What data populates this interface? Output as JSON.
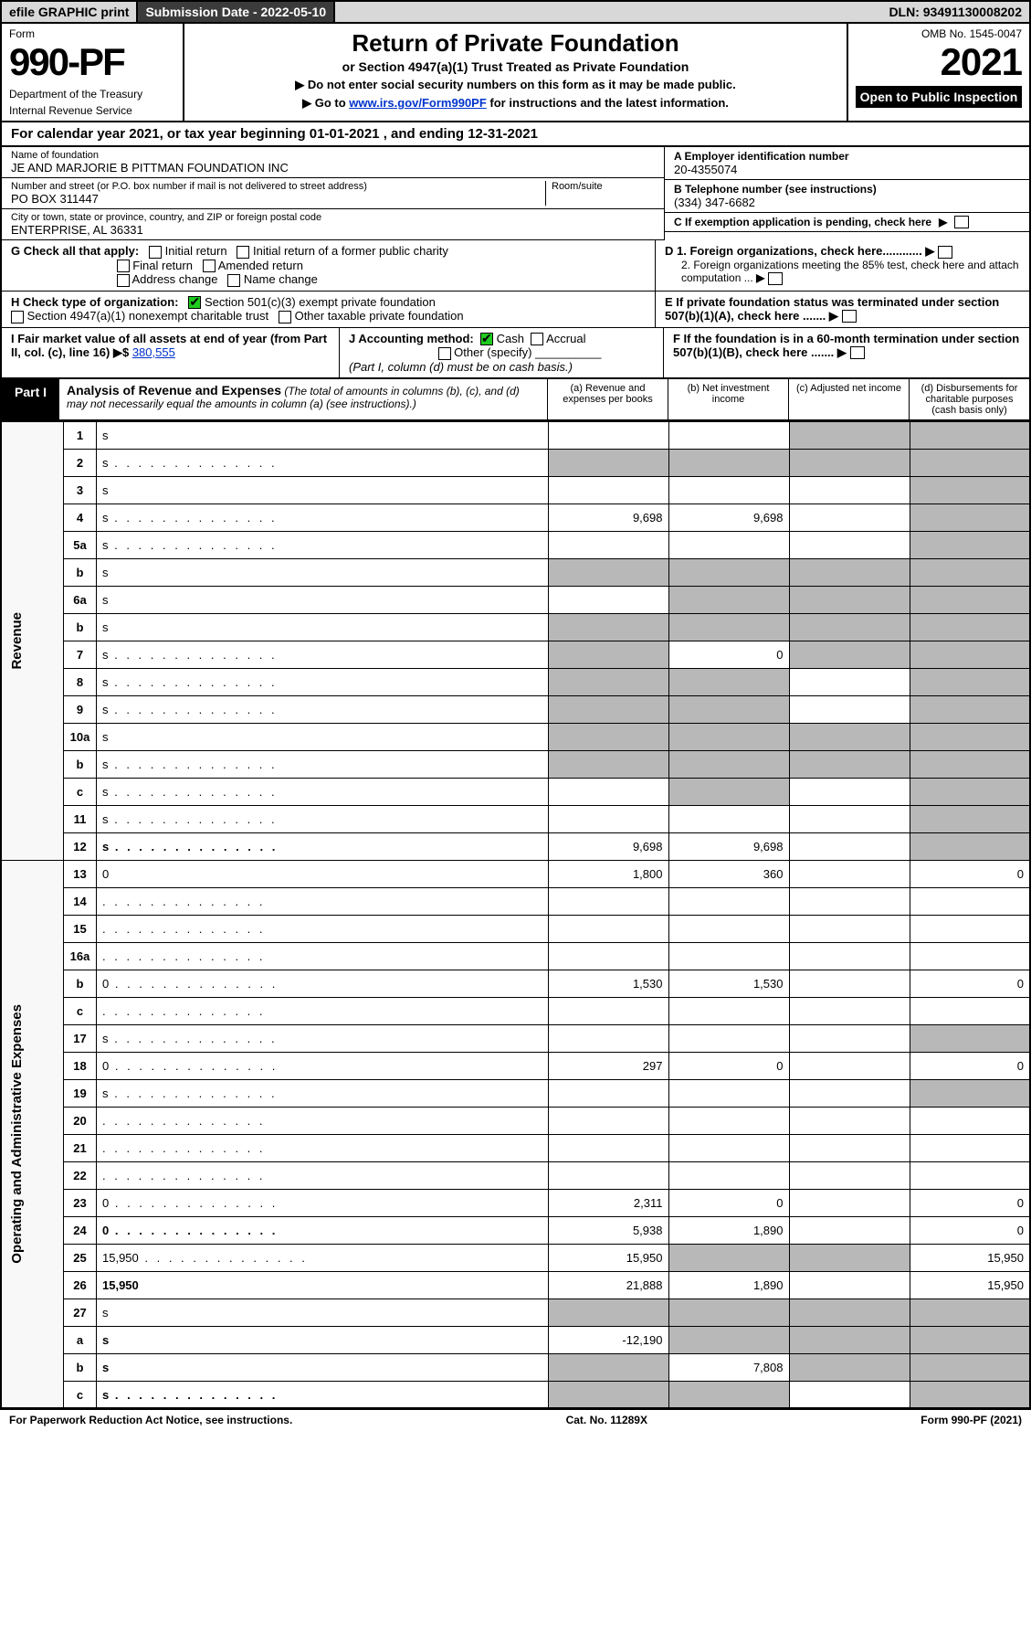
{
  "topbar": {
    "efile": "efile GRAPHIC print",
    "submission": "Submission Date - 2022-05-10",
    "dln": "DLN: 93491130008202"
  },
  "header": {
    "form_label": "Form",
    "form_num": "990-PF",
    "dept": "Department of the Treasury",
    "irs": "Internal Revenue Service",
    "title": "Return of Private Foundation",
    "sub1": "or Section 4947(a)(1) Trust Treated as Private Foundation",
    "sub2a": "▶ Do not enter social security numbers on this form as it may be made public.",
    "sub2b": "▶ Go to ",
    "sub2b_link": "www.irs.gov/Form990PF",
    "sub2b_tail": " for instructions and the latest information.",
    "omb": "OMB No. 1545-0047",
    "year": "2021",
    "open": "Open to Public Inspection"
  },
  "calyear": "For calendar year 2021, or tax year beginning 01-01-2021             , and ending 12-31-2021",
  "info": {
    "name_label": "Name of foundation",
    "name": "JE AND MARJORIE B PITTMAN FOUNDATION INC",
    "addr_label": "Number and street (or P.O. box number if mail is not delivered to street address)",
    "addr": "PO BOX 311447",
    "room_label": "Room/suite",
    "city_label": "City or town, state or province, country, and ZIP or foreign postal code",
    "city": "ENTERPRISE, AL  36331",
    "a_label": "A Employer identification number",
    "a_val": "20-4355074",
    "b_label": "B Telephone number (see instructions)",
    "b_val": "(334) 347-6682",
    "c_label": "C If exemption application is pending, check here",
    "d1": "D 1. Foreign organizations, check here............",
    "d2": "2. Foreign organizations meeting the 85% test, check here and attach computation ...",
    "e": "E  If private foundation status was terminated under section 507(b)(1)(A), check here .......",
    "f": "F  If the foundation is in a 60-month termination under section 507(b)(1)(B), check here .......",
    "g_label": "G Check all that apply:",
    "g_opts": [
      "Initial return",
      "Initial return of a former public charity",
      "Final return",
      "Amended return",
      "Address change",
      "Name change"
    ],
    "h_label": "H Check type of organization:",
    "h_opts": [
      "Section 501(c)(3) exempt private foundation",
      "Section 4947(a)(1) nonexempt charitable trust",
      "Other taxable private foundation"
    ],
    "i_label": "I Fair market value of all assets at end of year (from Part II, col. (c), line 16) ▶$ ",
    "i_val": "380,555",
    "j_label": "J Accounting method:",
    "j_opts": [
      "Cash",
      "Accrual",
      "Other (specify)"
    ],
    "j_note": "(Part I, column (d) must be on cash basis.)"
  },
  "part1": {
    "label": "Part I",
    "title": "Analysis of Revenue and Expenses",
    "titlesub": " (The total of amounts in columns (b), (c), and (d) may not necessarily equal the amounts in column (a) (see instructions).)",
    "cols": {
      "a": "(a)  Revenue and expenses per books",
      "b": "(b)  Net investment income",
      "c": "(c)  Adjusted net income",
      "d": "(d)  Disbursements for charitable purposes (cash basis only)"
    }
  },
  "sidelabels": {
    "rev": "Revenue",
    "op": "Operating and Administrative Expenses"
  },
  "rows": [
    {
      "n": "1",
      "d": "s",
      "a": "",
      "b": "",
      "c": "s"
    },
    {
      "n": "2",
      "d": "s",
      "dots": true,
      "a": "s",
      "b": "s",
      "c": "s"
    },
    {
      "n": "3",
      "d": "s",
      "a": "",
      "b": "",
      "c": ""
    },
    {
      "n": "4",
      "d": "s",
      "dots": true,
      "a": "9,698",
      "b": "9,698",
      "c": ""
    },
    {
      "n": "5a",
      "d": "s",
      "dots": true,
      "a": "",
      "b": "",
      "c": ""
    },
    {
      "n": "b",
      "d": "s",
      "a": "s",
      "b": "s",
      "c": "s"
    },
    {
      "n": "6a",
      "d": "s",
      "a": "",
      "b": "s",
      "c": "s"
    },
    {
      "n": "b",
      "d": "s",
      "a": "s",
      "b": "s",
      "c": "s"
    },
    {
      "n": "7",
      "d": "s",
      "dots": true,
      "a": "s",
      "b": "0",
      "c": "s"
    },
    {
      "n": "8",
      "d": "s",
      "dots": true,
      "a": "s",
      "b": "s",
      "c": ""
    },
    {
      "n": "9",
      "d": "s",
      "dots": true,
      "a": "s",
      "b": "s",
      "c": ""
    },
    {
      "n": "10a",
      "d": "s",
      "a": "s",
      "b": "s",
      "c": "s"
    },
    {
      "n": "b",
      "d": "s",
      "dots": true,
      "a": "s",
      "b": "s",
      "c": "s"
    },
    {
      "n": "c",
      "d": "s",
      "dots": true,
      "a": "",
      "b": "s",
      "c": ""
    },
    {
      "n": "11",
      "d": "s",
      "dots": true,
      "a": "",
      "b": "",
      "c": ""
    },
    {
      "n": "12",
      "d": "s",
      "dots": true,
      "bold": true,
      "a": "9,698",
      "b": "9,698",
      "c": ""
    },
    {
      "n": "13",
      "d": "0",
      "a": "1,800",
      "b": "360",
      "c": ""
    },
    {
      "n": "14",
      "d": "",
      "dots": true,
      "a": "",
      "b": "",
      "c": ""
    },
    {
      "n": "15",
      "d": "",
      "dots": true,
      "a": "",
      "b": "",
      "c": ""
    },
    {
      "n": "16a",
      "d": "",
      "dots": true,
      "a": "",
      "b": "",
      "c": ""
    },
    {
      "n": "b",
      "d": "0",
      "dots": true,
      "a": "1,530",
      "b": "1,530",
      "c": ""
    },
    {
      "n": "c",
      "d": "",
      "dots": true,
      "a": "",
      "b": "",
      "c": ""
    },
    {
      "n": "17",
      "d": "s",
      "dots": true,
      "a": "",
      "b": "",
      "c": ""
    },
    {
      "n": "18",
      "d": "0",
      "dots": true,
      "a": "297",
      "b": "0",
      "c": ""
    },
    {
      "n": "19",
      "d": "s",
      "dots": true,
      "a": "",
      "b": "",
      "c": ""
    },
    {
      "n": "20",
      "d": "",
      "dots": true,
      "a": "",
      "b": "",
      "c": ""
    },
    {
      "n": "21",
      "d": "",
      "dots": true,
      "a": "",
      "b": "",
      "c": ""
    },
    {
      "n": "22",
      "d": "",
      "dots": true,
      "a": "",
      "b": "",
      "c": ""
    },
    {
      "n": "23",
      "d": "0",
      "dots": true,
      "a": "2,311",
      "b": "0",
      "c": ""
    },
    {
      "n": "24",
      "d": "0",
      "dots": true,
      "bold": true,
      "a": "5,938",
      "b": "1,890",
      "c": ""
    },
    {
      "n": "25",
      "d": "15,950",
      "dots": true,
      "a": "15,950",
      "b": "s",
      "c": "s"
    },
    {
      "n": "26",
      "d": "15,950",
      "bold": true,
      "a": "21,888",
      "b": "1,890",
      "c": ""
    },
    {
      "n": "27",
      "d": "s",
      "a": "s",
      "b": "s",
      "c": "s"
    },
    {
      "n": "a",
      "d": "s",
      "bold": true,
      "a": "-12,190",
      "b": "s",
      "c": "s"
    },
    {
      "n": "b",
      "d": "s",
      "bold": true,
      "a": "s",
      "b": "7,808",
      "c": "s"
    },
    {
      "n": "c",
      "d": "s",
      "dots": true,
      "bold": true,
      "a": "s",
      "b": "s",
      "c": ""
    }
  ],
  "footer": {
    "left": "For Paperwork Reduction Act Notice, see instructions.",
    "mid": "Cat. No. 11289X",
    "right": "Form 990-PF (2021)"
  }
}
